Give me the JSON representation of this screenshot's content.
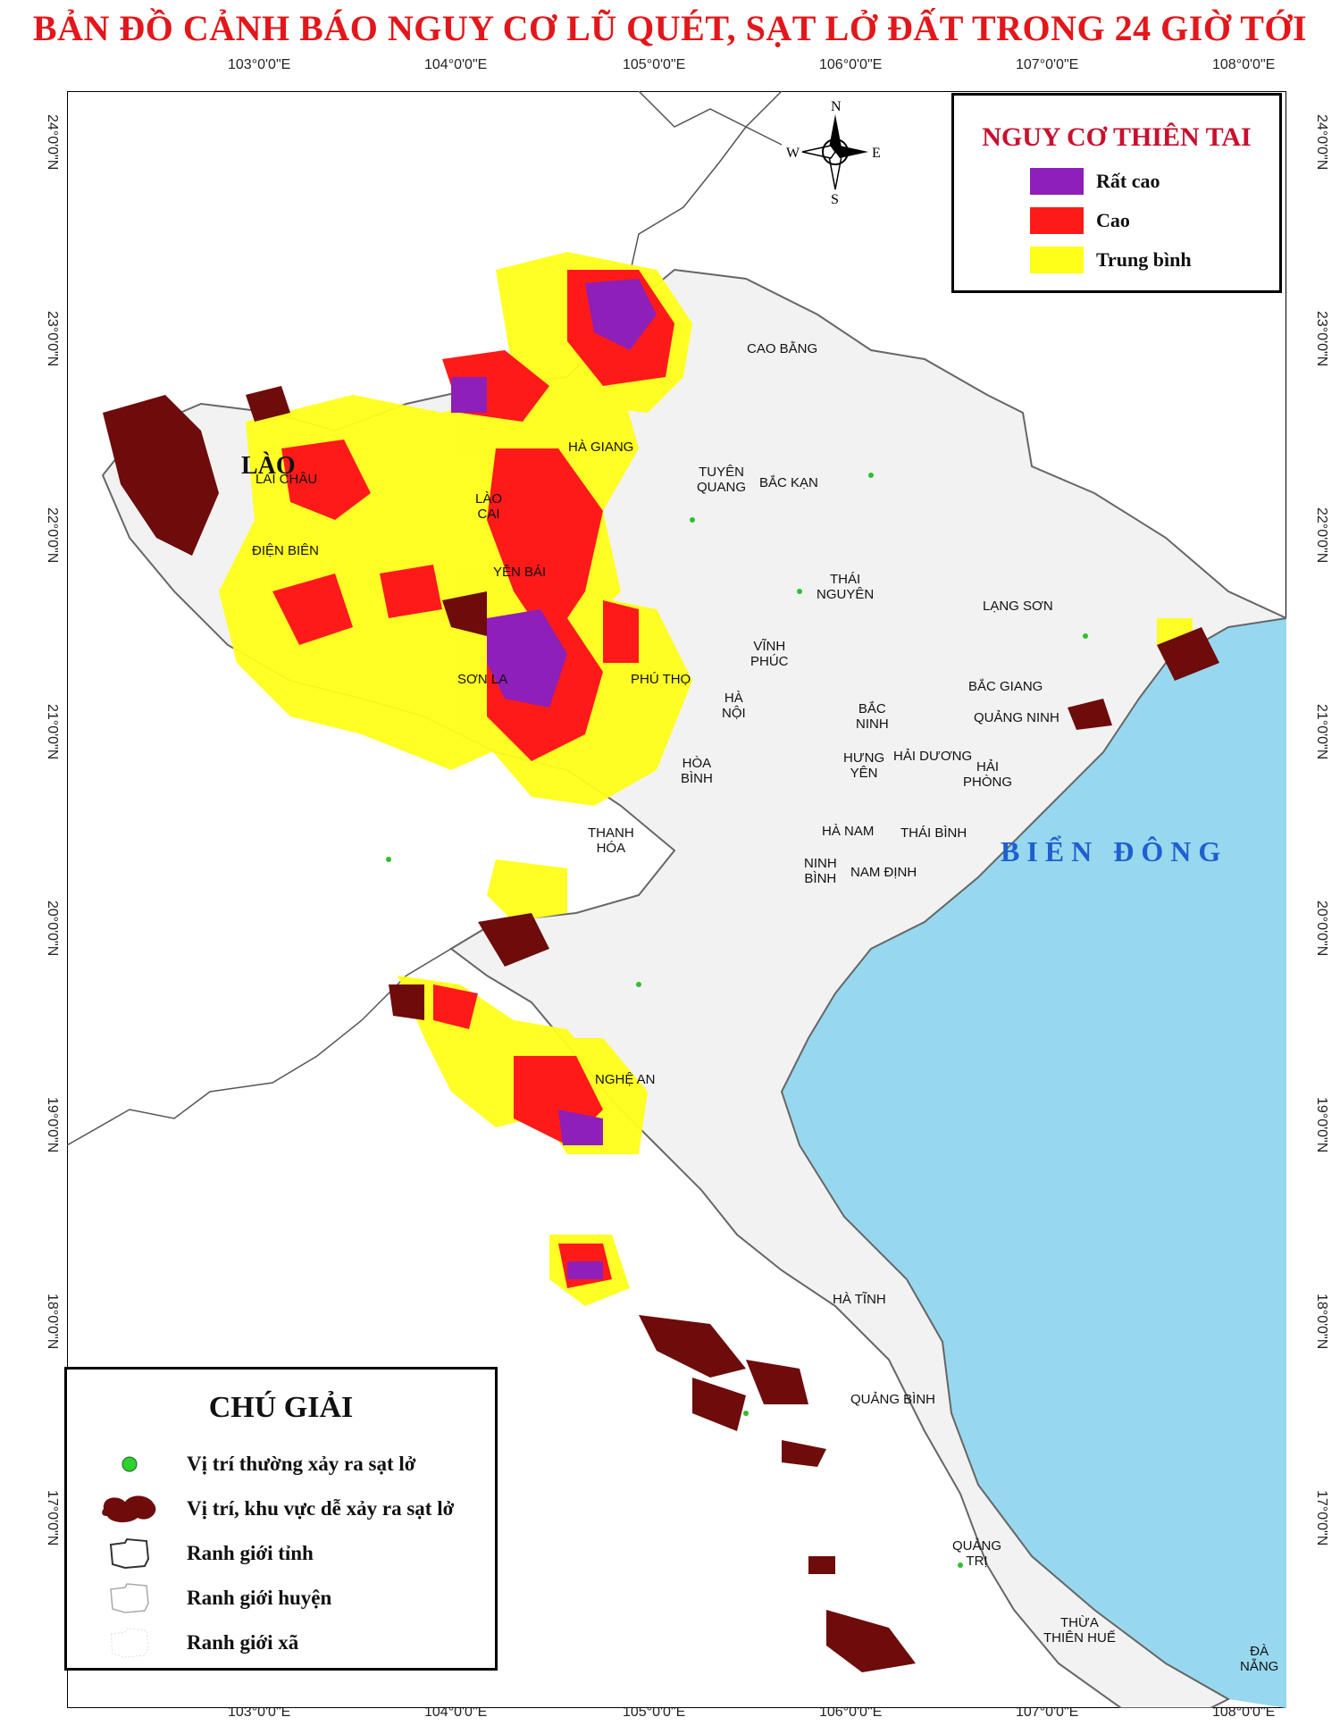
{
  "title": "BẢN ĐỒ CẢNH BÁO NGUY CƠ LŨ QUÉT, SẠT LỞ ĐẤT TRONG 24 GIỜ TỚI",
  "graticule": {
    "longitudes": [
      "103°0'0\"E",
      "104°0'0\"E",
      "105°0'0\"E",
      "106°0'0\"E",
      "107°0'0\"E",
      "108°0'0\"E"
    ],
    "latitudes": [
      "24°0'0\"N",
      "23°0'0\"N",
      "22°0'0\"N",
      "21°0'0\"N",
      "20°0'0\"N",
      "19°0'0\"N",
      "18°0'0\"N",
      "17°0'0\"N"
    ]
  },
  "compass": {
    "north": "N",
    "south": "S",
    "east": "E",
    "west": "W"
  },
  "risk_legend": {
    "title": "NGUY CƠ THIÊN TAI",
    "items": [
      {
        "label": "Rất cao",
        "color": "#8e1fb8"
      },
      {
        "label": "Cao",
        "color": "#ff1a1a"
      },
      {
        "label": "Trung bình",
        "color": "#ffff1a"
      }
    ]
  },
  "legend": {
    "title": "CHÚ GIẢI",
    "items": [
      {
        "label": "Vị trí thường xảy ra sạt lở",
        "symbol": "green-dot-icon"
      },
      {
        "label": "Vị trí, khu vực dễ xảy ra sạt lở",
        "symbol": "landslide-area-icon"
      },
      {
        "label": "Ranh giới tỉnh",
        "symbol": "province-boundary-icon"
      },
      {
        "label": "Ranh giới huyện",
        "symbol": "district-boundary-icon"
      },
      {
        "label": "Ranh giới xã",
        "symbol": "commune-boundary-icon"
      }
    ]
  },
  "map": {
    "country_label": "LÀO",
    "sea_label": "BIỂN ĐÔNG",
    "colors": {
      "sea": "#97d8ef",
      "land": "#f2f2f2",
      "landslide": "#6e0b0b",
      "boundary": "#999999"
    },
    "places": [
      "CAO BẰNG",
      "HÀ GIANG",
      "TUYÊN\nQUANG",
      "BẮC KẠN",
      "LÀO\nCAI",
      "LAI CHÂU",
      "ĐIỆN BIÊN",
      "YÊN BÁI",
      "THÁI\nNGUYÊN",
      "LẠNG SƠN",
      "SƠN LA",
      "PHÚ THỌ",
      "VĨNH\nPHÚC",
      "HÀ\nNỘI",
      "BẮC\nNINH",
      "BẮC GIANG",
      "QUẢNG NINH",
      "HƯNG\nYÊN",
      "HẢI DƯƠNG",
      "HẢI\nPHÒNG",
      "HÒA\nBÌNH",
      "HÀ NAM",
      "THÁI BÌNH",
      "NINH\nBÌNH",
      "NAM ĐỊNH",
      "THANH\nHÓA",
      "NGHỆ AN",
      "HÀ TĨNH",
      "QUẢNG BÌNH",
      "QUẢNG\nTRỊ",
      "THỪA\nTHIÊN HUẾ",
      "ĐÀ\nNẴNG"
    ]
  }
}
